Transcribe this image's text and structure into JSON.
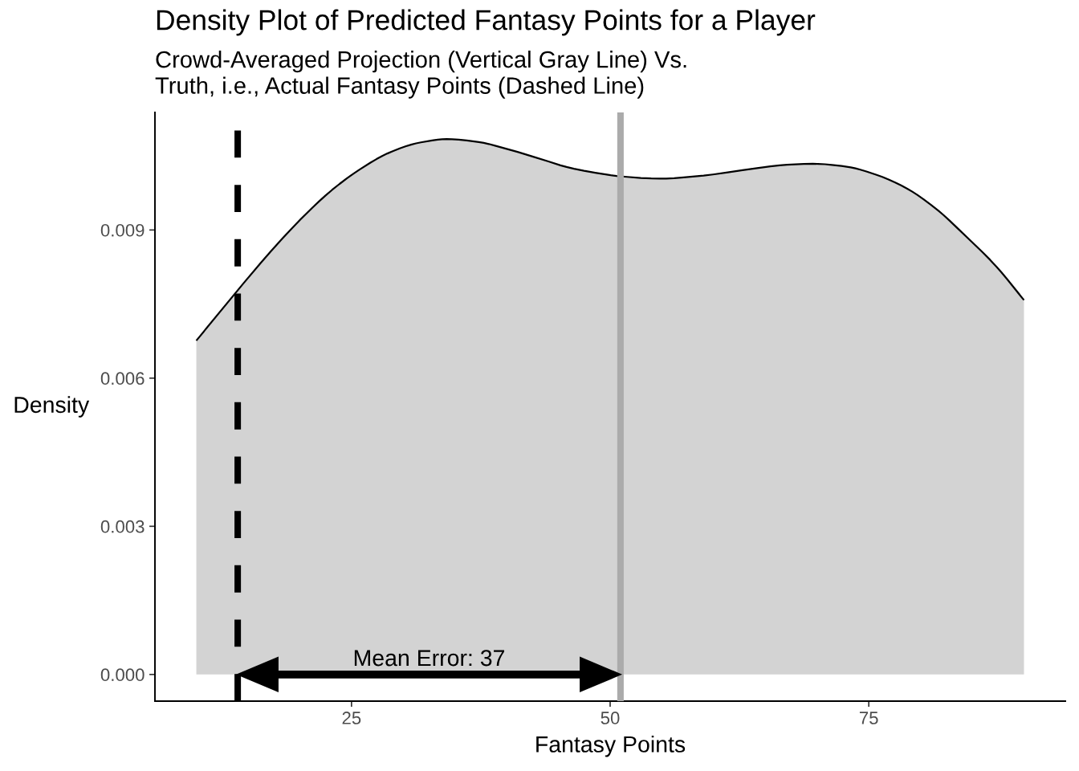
{
  "chart_data": {
    "type": "area",
    "title": "Density Plot of Predicted Fantasy Points for a Player",
    "subtitle": "Crowd-Averaged Projection (Vertical Gray Line) Vs.\nTruth, i.e., Actual Fantasy Points (Dashed Line)",
    "xlabel": "Fantasy Points",
    "ylabel": "Density",
    "x": [
      10,
      14,
      17.3,
      20.1,
      23,
      25.9,
      28.7,
      31.6,
      34.2,
      37.3,
      40.2,
      43.1,
      45.9,
      48.8,
      50.8,
      54.8,
      58.5,
      62.8,
      67.1,
      69.7,
      72.9,
      75.7,
      78.6,
      81.5,
      84.3,
      87.2,
      90
    ],
    "series": [
      {
        "color": "#d3d3d3",
        "values": [
          0.00676,
          0.00778,
          0.00859,
          0.00922,
          0.00979,
          0.01024,
          0.01057,
          0.01077,
          0.01084,
          0.01078,
          0.01063,
          0.01045,
          0.01027,
          0.01015,
          0.01009,
          0.01004,
          0.01009,
          0.01021,
          0.01032,
          0.01034,
          0.01028,
          0.01012,
          0.00985,
          0.00943,
          0.00889,
          0.00829,
          0.00758
        ]
      }
    ],
    "xlim": [
      6,
      94
    ],
    "xticks": [
      25,
      50,
      75
    ],
    "ylim": [
      -0.00054,
      0.01138
    ],
    "yticks": [
      {
        "value": 0,
        "label": "0.000"
      },
      {
        "value": 0.003,
        "label": "0.003"
      },
      {
        "value": 0.006,
        "label": "0.006"
      },
      {
        "value": 0.009,
        "label": "0.009"
      }
    ],
    "ref_lines": [
      {
        "axis": "x",
        "value": 14,
        "color": "#000000",
        "line_style": "dashed"
      },
      {
        "axis": "x",
        "value": 51,
        "color": "#ababab",
        "line_style": "solid"
      }
    ],
    "annotations": [
      "Mean Error: 37"
    ],
    "grid": false
  }
}
